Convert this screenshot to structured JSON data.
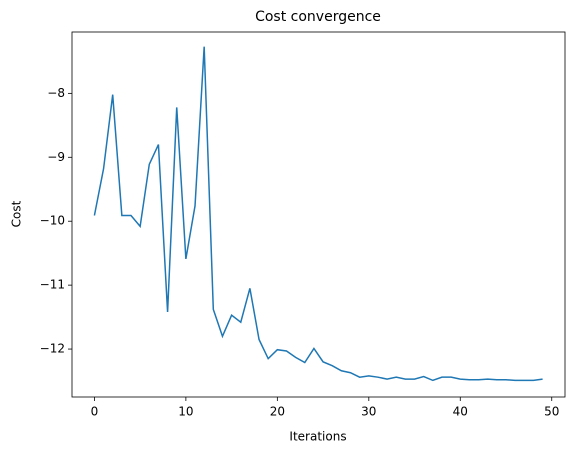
{
  "chart_data": {
    "type": "line",
    "title": "Cost convergence",
    "x_label": "Iterations",
    "y_label": "Cost",
    "x": [
      0,
      1,
      2,
      3,
      4,
      5,
      6,
      7,
      8,
      9,
      10,
      11,
      12,
      13,
      14,
      15,
      16,
      17,
      18,
      19,
      20,
      21,
      22,
      23,
      24,
      25,
      26,
      27,
      28,
      29,
      30,
      31,
      32,
      33,
      34,
      35,
      36,
      37,
      38,
      39,
      40,
      41,
      42,
      43,
      44,
      45,
      46,
      47,
      48,
      49
    ],
    "series": [
      {
        "color": "#1f77b4",
        "values": [
          -9.91,
          -9.18,
          -8.02,
          -9.91,
          -9.91,
          -10.08,
          -9.11,
          -8.8,
          -11.42,
          -8.22,
          -10.59,
          -9.76,
          -7.27,
          -11.38,
          -11.8,
          -11.47,
          -11.58,
          -11.05,
          -11.85,
          -12.15,
          -12.01,
          -12.03,
          -12.13,
          -12.21,
          -11.99,
          -12.2,
          -12.26,
          -12.34,
          -12.37,
          -12.44,
          -12.42,
          -12.44,
          -12.47,
          -12.44,
          -12.47,
          -12.47,
          -12.43,
          -12.49,
          -12.44,
          -12.44,
          -12.47,
          -12.48,
          -12.48,
          -12.47,
          -12.48,
          -12.48,
          -12.49,
          -12.49,
          -12.49,
          -12.47
        ]
      }
    ],
    "xlim": [
      -2.45,
      51.45
    ],
    "ylim": [
      -12.75,
      -7.04
    ],
    "xticks": [
      0,
      10,
      20,
      30,
      40,
      50
    ],
    "yticks": [
      {
        "value": -12,
        "label": "−12"
      },
      {
        "value": -11,
        "label": "−11"
      },
      {
        "value": -10,
        "label": "−10"
      },
      {
        "value": -9,
        "label": "−9"
      },
      {
        "value": -8,
        "label": "−8"
      }
    ],
    "grid": false
  }
}
